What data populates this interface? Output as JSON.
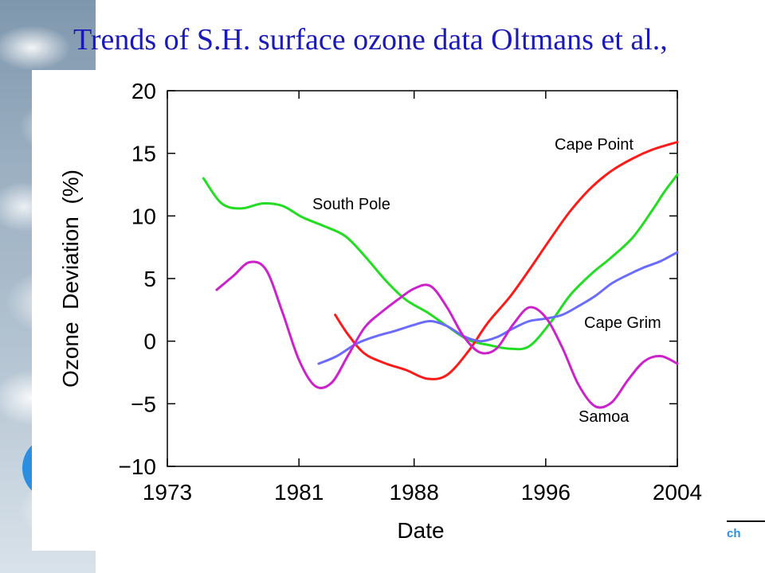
{
  "slide": {
    "title": "Trends of S.H. surface ozone data Oltmans et al.,",
    "footer_fragment": "ch"
  },
  "chart_data": {
    "type": "line",
    "title": "",
    "xlabel": "Date",
    "ylabel": "Ozone  Deviation  (%)",
    "xlim": [
      1973,
      2004
    ],
    "ylim": [
      -10,
      20
    ],
    "x_ticks": [
      1973,
      1981,
      1988,
      1996,
      2004
    ],
    "x_tick_labels": [
      "1973",
      "1981",
      "1988",
      "1996",
      "2004"
    ],
    "y_ticks": [
      -10,
      -5,
      0,
      5,
      10,
      15,
      20
    ],
    "y_tick_labels": [
      "−10",
      "−5",
      "0",
      "5",
      "10",
      "15",
      "20"
    ],
    "grid": false,
    "legend": "inline labels",
    "series": [
      {
        "name": "South Pole",
        "color": "#22dd22",
        "points": [
          [
            1975.2,
            13.0
          ],
          [
            1976.3,
            11.0
          ],
          [
            1977.5,
            10.6
          ],
          [
            1978.8,
            11.0
          ],
          [
            1980.0,
            10.8
          ],
          [
            1981.2,
            9.9
          ],
          [
            1982.5,
            9.2
          ],
          [
            1983.8,
            8.4
          ],
          [
            1985.0,
            6.8
          ],
          [
            1986.3,
            4.8
          ],
          [
            1987.5,
            3.3
          ],
          [
            1988.8,
            2.3
          ],
          [
            1990.0,
            1.2
          ],
          [
            1991.3,
            0.1
          ],
          [
            1992.5,
            -0.3
          ],
          [
            1993.8,
            -0.6
          ],
          [
            1995.0,
            -0.4
          ],
          [
            1996.3,
            1.5
          ],
          [
            1997.5,
            3.7
          ],
          [
            1998.8,
            5.4
          ],
          [
            2000.0,
            6.7
          ],
          [
            2001.3,
            8.3
          ],
          [
            2002.5,
            10.5
          ],
          [
            2003.2,
            11.9
          ],
          [
            2004.0,
            13.3
          ]
        ]
      },
      {
        "name": "Cape Point",
        "color": "#ff1a1a",
        "points": [
          [
            1983.2,
            2.1
          ],
          [
            1984.0,
            0.5
          ],
          [
            1985.0,
            -1.0
          ],
          [
            1986.3,
            -1.8
          ],
          [
            1987.5,
            -2.3
          ],
          [
            1988.8,
            -3.0
          ],
          [
            1990.0,
            -2.7
          ],
          [
            1991.3,
            -0.8
          ],
          [
            1992.5,
            1.5
          ],
          [
            1993.8,
            3.5
          ],
          [
            1995.0,
            5.7
          ],
          [
            1996.3,
            8.2
          ],
          [
            1997.5,
            10.4
          ],
          [
            1998.8,
            12.3
          ],
          [
            2000.0,
            13.6
          ],
          [
            2001.3,
            14.6
          ],
          [
            2002.5,
            15.3
          ],
          [
            2004.0,
            15.9
          ]
        ]
      },
      {
        "name": "Cape Grim",
        "color": "#6b6bff",
        "points": [
          [
            1982.2,
            -1.8
          ],
          [
            1983.3,
            -1.2
          ],
          [
            1984.5,
            -0.2
          ],
          [
            1985.7,
            0.4
          ],
          [
            1986.8,
            0.8
          ],
          [
            1988.0,
            1.3
          ],
          [
            1989.0,
            1.6
          ],
          [
            1990.0,
            1.2
          ],
          [
            1991.0,
            0.4
          ],
          [
            1992.0,
            0.0
          ],
          [
            1993.0,
            0.3
          ],
          [
            1994.0,
            1.0
          ],
          [
            1995.0,
            1.6
          ],
          [
            1996.0,
            1.8
          ],
          [
            1997.0,
            2.1
          ],
          [
            1998.0,
            2.8
          ],
          [
            1999.0,
            3.6
          ],
          [
            2000.0,
            4.6
          ],
          [
            2001.0,
            5.3
          ],
          [
            2002.0,
            5.9
          ],
          [
            2003.0,
            6.4
          ],
          [
            2004.0,
            7.1
          ]
        ]
      },
      {
        "name": "Samoa",
        "color": "#cc22cc",
        "points": [
          [
            1976.0,
            4.1
          ],
          [
            1977.0,
            5.2
          ],
          [
            1978.0,
            6.3
          ],
          [
            1979.0,
            5.7
          ],
          [
            1980.0,
            2.3
          ],
          [
            1981.0,
            -1.5
          ],
          [
            1982.0,
            -3.6
          ],
          [
            1983.0,
            -3.3
          ],
          [
            1984.0,
            -1.1
          ],
          [
            1985.0,
            1.1
          ],
          [
            1986.0,
            2.3
          ],
          [
            1987.0,
            3.3
          ],
          [
            1988.0,
            4.2
          ],
          [
            1989.0,
            4.4
          ],
          [
            1990.0,
            2.7
          ],
          [
            1991.0,
            0.4
          ],
          [
            1992.0,
            -0.9
          ],
          [
            1993.0,
            -0.6
          ],
          [
            1994.0,
            1.3
          ],
          [
            1995.0,
            2.7
          ],
          [
            1996.0,
            1.9
          ],
          [
            1997.0,
            -0.5
          ],
          [
            1998.0,
            -3.5
          ],
          [
            1999.0,
            -5.2
          ],
          [
            2000.0,
            -4.9
          ],
          [
            2001.0,
            -3.1
          ],
          [
            2002.0,
            -1.6
          ],
          [
            2003.0,
            -1.2
          ],
          [
            2004.0,
            -1.8
          ]
        ]
      }
    ]
  }
}
